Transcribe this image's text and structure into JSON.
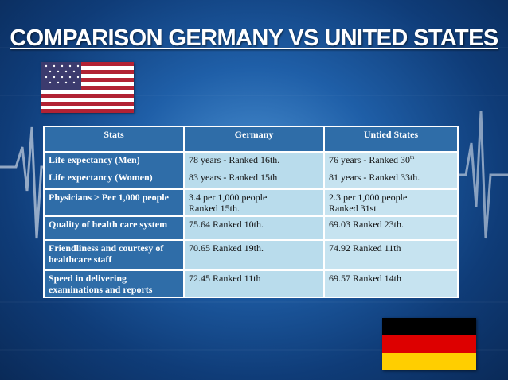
{
  "slide": {
    "title": "COMPARISON GERMANY VS UNITED STATES",
    "colors": {
      "background": "#1f5fa8",
      "header_cell": "#2f6da8",
      "value_cell": "#b9dcec"
    }
  },
  "table": {
    "headers": [
      "Stats",
      "Germany",
      "Untied States"
    ],
    "rows": [
      {
        "label": "Life expectancy (Men)",
        "label2": "Life expectancy (Women)",
        "germany": "78 years - Ranked 16th.",
        "germany2": "83 years - Ranked 15th",
        "us": "76 years - Ranked 30",
        "us_sup": "th",
        "us2": "81 years - Ranked 33th."
      },
      {
        "label": "Physicians > Per 1,000 people",
        "germany": "3.4 per 1,000 people",
        "germany2": "Ranked 15th.",
        "us": "2.3 per 1,000 people",
        "us2": "Ranked 31st"
      },
      {
        "label": "Quality of health care system",
        "germany": "75.64 Ranked 10th.",
        "us": "69.03 Ranked 23th."
      },
      {
        "label": "Friendliness and courtesy of healthcare  staff",
        "germany": "70.65 Ranked 19th.",
        "us": "74.92 Ranked 11th"
      },
      {
        "label": " Speed in delivering examinations and reports",
        "germany": "72.45 Ranked 11th",
        "us": "69.57 Ranked 14th"
      }
    ]
  },
  "flags": {
    "top_left": "us-flag-icon",
    "bottom_right": "germany-flag-icon",
    "germany_colors": [
      "#000000",
      "#dd0000",
      "#ffce00"
    ]
  }
}
